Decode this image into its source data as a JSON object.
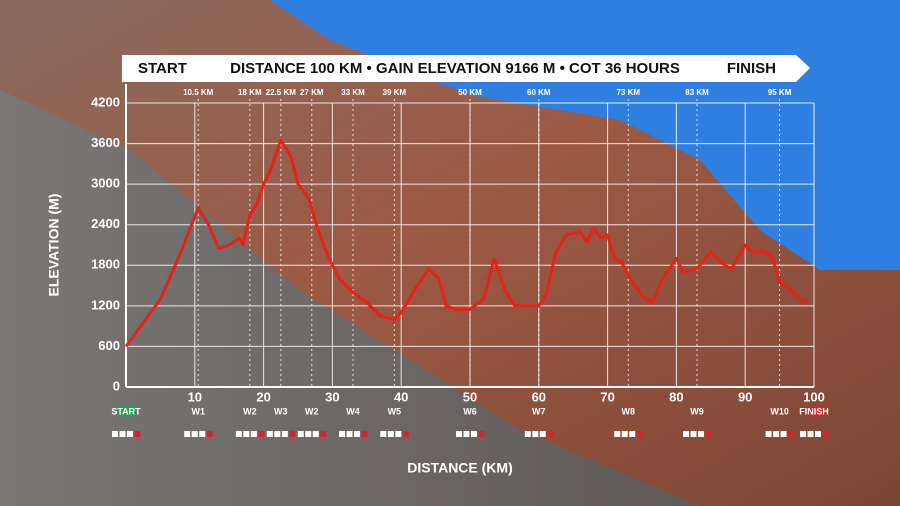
{
  "banner": {
    "start": "START",
    "info": "DISTANCE 100 KM • GAIN ELEVATION 9166 M • COT 36 HOURS",
    "finish": "FINISH"
  },
  "chart_data": {
    "type": "line",
    "y_label": "ELEVATION (M)",
    "x_label": "DISTANCE (KM)",
    "x": [
      0,
      5,
      8,
      10.5,
      12,
      13.5,
      15,
      16.5,
      17,
      18,
      19,
      20,
      21,
      22.5,
      24,
      25,
      26.5,
      28,
      29.5,
      31,
      33,
      35,
      37,
      39,
      40,
      42,
      44,
      45.5,
      46.5,
      48,
      50,
      52,
      53.5,
      55,
      56.5,
      60,
      61,
      62.5,
      64,
      66,
      67,
      68,
      69,
      70,
      71,
      72,
      73,
      75,
      76.5,
      78,
      80,
      81,
      83,
      85,
      87,
      88,
      90,
      91,
      93,
      94,
      95,
      96.5,
      98,
      99
    ],
    "series": [
      {
        "name": "Elevation",
        "color": "#e8211a",
        "values": [
          600,
          1300,
          2000,
          2650,
          2400,
          2050,
          2100,
          2200,
          2100,
          2550,
          2700,
          3000,
          3200,
          3650,
          3400,
          3000,
          2800,
          2300,
          1900,
          1600,
          1400,
          1250,
          1050,
          1000,
          1100,
          1450,
          1750,
          1600,
          1200,
          1150,
          1150,
          1300,
          1900,
          1450,
          1200,
          1200,
          1350,
          2000,
          2250,
          2300,
          2150,
          2350,
          2200,
          2250,
          1900,
          1850,
          1650,
          1350,
          1250,
          1600,
          1900,
          1700,
          1750,
          2000,
          1800,
          1750,
          2100,
          2000,
          2000,
          1900,
          1550,
          1450,
          1300,
          1250
        ]
      }
    ],
    "xlim": [
      0,
      100
    ],
    "ylim": [
      0,
      4200
    ],
    "xticks": [
      10,
      20,
      30,
      40,
      50,
      60,
      70,
      80,
      90,
      100
    ],
    "yticks": [
      0,
      600,
      1200,
      1800,
      2400,
      3000,
      3600,
      4200
    ],
    "grid": true,
    "checkpoints": [
      {
        "km": 0,
        "station": "START"
      },
      {
        "km": 10.5,
        "label": "10.5 KM",
        "station": "W1"
      },
      {
        "km": 18,
        "label": "18 KM",
        "station": "W2"
      },
      {
        "km": 22.5,
        "label": "22.5 KM",
        "station": "W3"
      },
      {
        "km": 27,
        "label": "27 KM",
        "station": "W2"
      },
      {
        "km": 33,
        "label": "33 KM",
        "station": "W4"
      },
      {
        "km": 39,
        "label": "39 KM",
        "station": "W5"
      },
      {
        "km": 50,
        "label": "50 KM",
        "station": "W6"
      },
      {
        "km": 60,
        "label": "60 KM",
        "station": "W7"
      },
      {
        "km": 73,
        "label": "73 KM",
        "station": "W8"
      },
      {
        "km": 83,
        "label": "83 KM",
        "station": "W9"
      },
      {
        "km": 95,
        "label": "95 KM",
        "station": "W10"
      },
      {
        "km": 100,
        "station": "FINISH"
      }
    ]
  }
}
